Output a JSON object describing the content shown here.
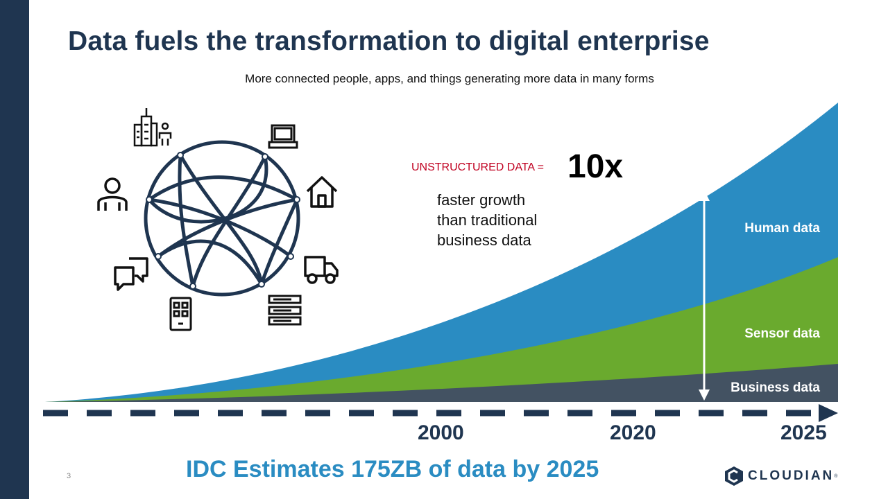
{
  "slide": {
    "title": "Data fuels the transformation to digital enterprise",
    "subtitle": "More connected people, apps, and things generating more data in many forms",
    "page_number": "3",
    "footer_headline": "IDC Estimates 175ZB of data by 2025"
  },
  "callout": {
    "label": "UNSTRUCTURED DATA =",
    "value": "10x",
    "description_lines": [
      "faster growth",
      "than traditional",
      "business data"
    ]
  },
  "growth_chart": {
    "bands": [
      "Human data",
      "Sensor data",
      "Business data"
    ],
    "years": [
      "2000",
      "2020",
      "2025"
    ]
  },
  "icons": [
    "city-person-icon",
    "laptop-icon",
    "person-icon",
    "house-icon",
    "chat-icon",
    "truck-icon",
    "phone-app-icon",
    "server-icon"
  ],
  "logo": {
    "text": "CLOUDIAN",
    "tm": "®"
  },
  "colors": {
    "navy": "#1f3550",
    "human": "#2a8cc2",
    "sensor": "#6aaa2e",
    "business": "#435262",
    "accent_red": "#c00020"
  }
}
